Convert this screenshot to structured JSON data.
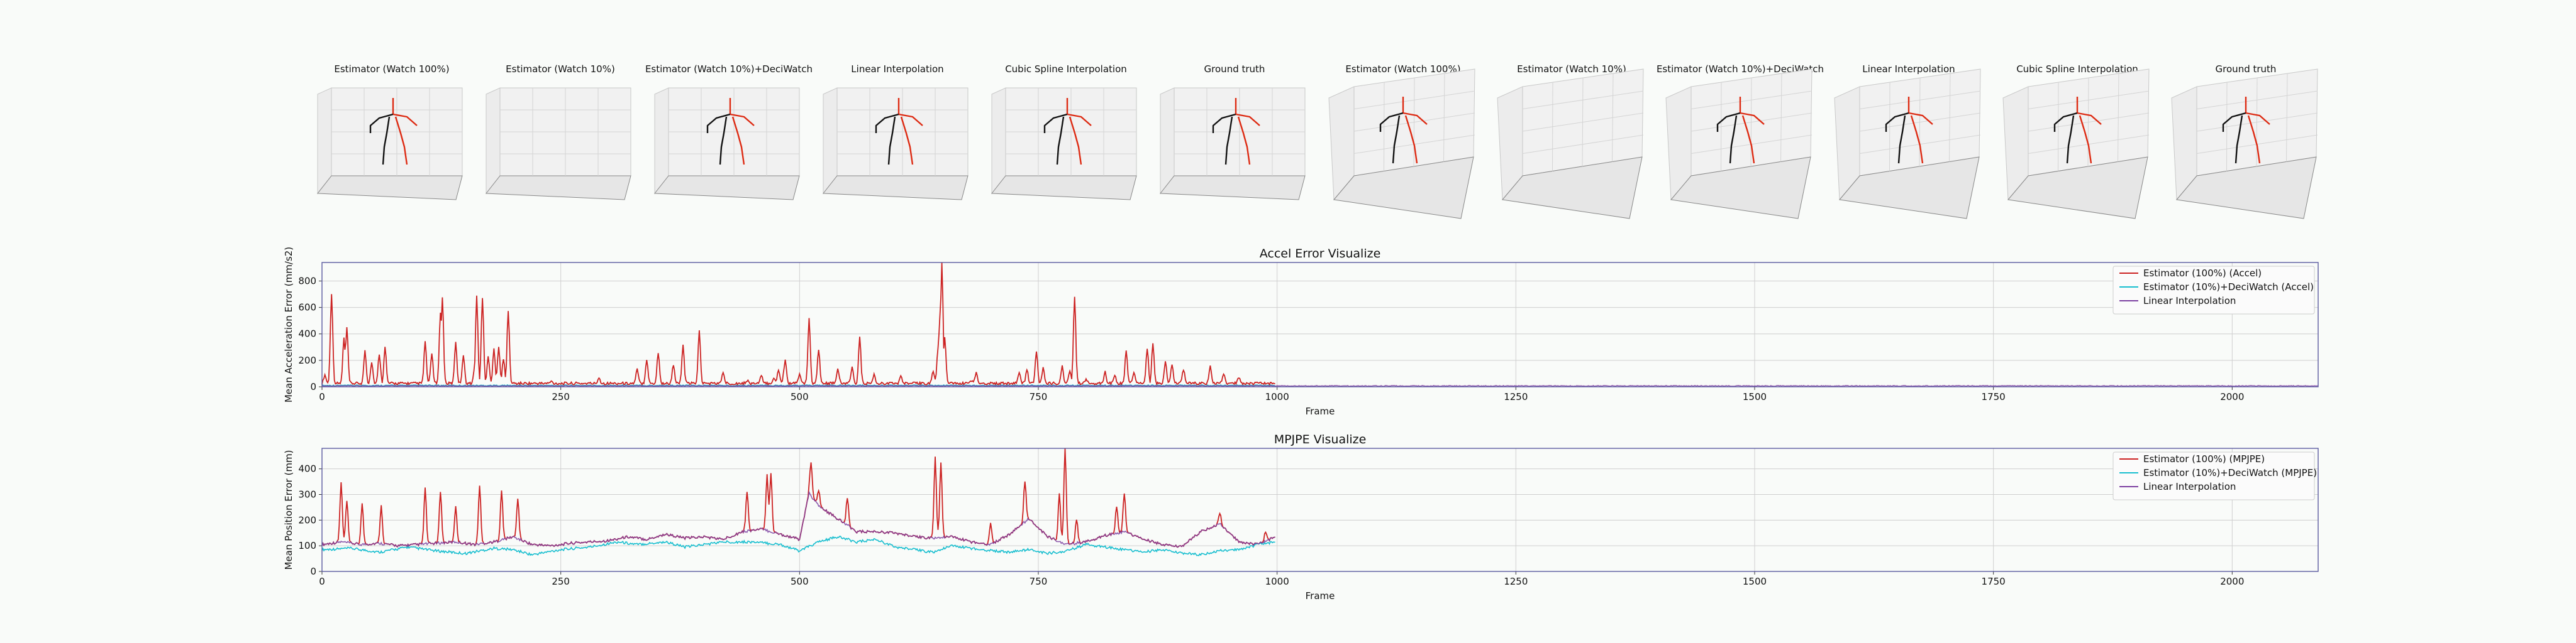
{
  "panels_row": {
    "titles": [
      "Estimator (Watch 100%)",
      "Estimator (Watch 10%)",
      "Estimator (Watch 10%)+DeciWatch",
      "Linear Interpolation",
      "Cubic Spline Interpolation",
      "Ground truth",
      "Estimator (Watch 100%)",
      "Estimator (Watch 10%)",
      "Estimator (Watch 10%)+DeciWatch",
      "Linear Interpolation",
      "Cubic Spline Interpolation",
      "Ground truth"
    ],
    "skeleton_visible": [
      true,
      false,
      true,
      true,
      true,
      true,
      true,
      false,
      true,
      true,
      true,
      true
    ]
  },
  "colors": {
    "accel_estimator": "#cc2222",
    "deciwatch": "#17becf",
    "linear": "#7b3fa0",
    "skeleton_red": "#dd2a12",
    "skeleton_black": "#111111",
    "axes_frame": "#5a5aa0"
  },
  "chart_data": [
    {
      "type": "line",
      "title": "Accel Error Visualize",
      "xlabel": "Frame",
      "ylabel": "Mean Acceleration Error (mm/s2)",
      "xlim": [
        0,
        2090
      ],
      "ylim": [
        0,
        940
      ],
      "xticks": [
        0,
        250,
        500,
        750,
        1000,
        1250,
        1500,
        1750,
        2000
      ],
      "yticks": [
        0,
        200,
        400,
        600,
        800
      ],
      "legend_position": "top-right",
      "series": [
        {
          "name": "Estimator (100%) (Accel)",
          "color": "#cc2222",
          "baseline": 15,
          "spikes": [
            [
              3,
              80
            ],
            [
              10,
              700
            ],
            [
              23,
              360
            ],
            [
              26,
              440
            ],
            [
              45,
              260
            ],
            [
              52,
              180
            ],
            [
              60,
              240
            ],
            [
              66,
              290
            ],
            [
              108,
              330
            ],
            [
              115,
              240
            ],
            [
              124,
              560
            ],
            [
              126,
              670
            ],
            [
              140,
              330
            ],
            [
              148,
              230
            ],
            [
              160,
              140
            ],
            [
              162,
              670
            ],
            [
              168,
              660
            ],
            [
              174,
              220
            ],
            [
              180,
              270
            ],
            [
              185,
              300
            ],
            [
              190,
              200
            ],
            [
              195,
              560
            ],
            [
              240,
              30
            ],
            [
              290,
              60
            ],
            [
              330,
              120
            ],
            [
              340,
              200
            ],
            [
              352,
              250
            ],
            [
              368,
              160
            ],
            [
              378,
              300
            ],
            [
              395,
              410
            ],
            [
              420,
              100
            ],
            [
              445,
              40
            ],
            [
              460,
              70
            ],
            [
              473,
              60
            ],
            [
              478,
              120
            ],
            [
              484,
              120
            ],
            [
              485,
              200
            ],
            [
              500,
              90
            ],
            [
              510,
              500
            ],
            [
              520,
              270
            ],
            [
              540,
              130
            ],
            [
              555,
              140
            ],
            [
              563,
              360
            ],
            [
              578,
              80
            ],
            [
              606,
              70
            ],
            [
              640,
              110
            ],
            [
              645,
              280
            ],
            [
              647,
              540
            ],
            [
              649,
              930
            ],
            [
              652,
              370
            ],
            [
              680,
              40
            ],
            [
              685,
              100
            ],
            [
              730,
              100
            ],
            [
              738,
              120
            ],
            [
              748,
              260
            ],
            [
              755,
              130
            ],
            [
              775,
              150
            ],
            [
              783,
              110
            ],
            [
              788,
              680
            ],
            [
              800,
              40
            ],
            [
              820,
              100
            ],
            [
              830,
              80
            ],
            [
              842,
              260
            ],
            [
              850,
              100
            ],
            [
              864,
              280
            ],
            [
              870,
              310
            ],
            [
              883,
              180
            ],
            [
              890,
              160
            ],
            [
              902,
              120
            ],
            [
              930,
              150
            ],
            [
              944,
              90
            ],
            [
              960,
              60
            ]
          ],
          "max_frame": 998
        },
        {
          "name": "Estimator (10%)+DeciWatch (Accel)",
          "color": "#17becf",
          "baseline": 6,
          "max_frame": 998
        },
        {
          "name": "Linear Interpolation",
          "color": "#7b3fa0",
          "baseline": 4,
          "max_frame": 2090
        }
      ]
    },
    {
      "type": "line",
      "title": "MPJPE Visualize",
      "xlabel": "Frame",
      "ylabel": "Mean Position Error (mm)",
      "xlim": [
        0,
        2090
      ],
      "ylim": [
        0,
        480
      ],
      "xticks": [
        0,
        250,
        500,
        750,
        1000,
        1250,
        1500,
        1750,
        2000
      ],
      "yticks": [
        0,
        100,
        200,
        300,
        400
      ],
      "legend_position": "top-right",
      "series": [
        {
          "name": "Estimator (100%) (MPJPE)",
          "color": "#cc2222",
          "keypoints": [
            [
              0,
              100
            ],
            [
              20,
              110
            ],
            [
              40,
              100
            ],
            [
              60,
              105
            ],
            [
              80,
              95
            ],
            [
              100,
              100
            ],
            [
              120,
              105
            ],
            [
              140,
              110
            ],
            [
              160,
              100
            ],
            [
              180,
              110
            ],
            [
              200,
              130
            ],
            [
              220,
              100
            ],
            [
              240,
              95
            ],
            [
              260,
              105
            ],
            [
              280,
              110
            ],
            [
              300,
              115
            ],
            [
              320,
              130
            ],
            [
              340,
              120
            ],
            [
              360,
              140
            ],
            [
              380,
              125
            ],
            [
              400,
              130
            ],
            [
              420,
              120
            ],
            [
              440,
              150
            ],
            [
              460,
              160
            ],
            [
              480,
              140
            ],
            [
              500,
              120
            ],
            [
              510,
              300
            ],
            [
              520,
              250
            ],
            [
              540,
              200
            ],
            [
              560,
              150
            ],
            [
              580,
              150
            ],
            [
              600,
              145
            ],
            [
              620,
              130
            ],
            [
              640,
              125
            ],
            [
              660,
              130
            ],
            [
              680,
              110
            ],
            [
              700,
              100
            ],
            [
              720,
              140
            ],
            [
              740,
              200
            ],
            [
              760,
              130
            ],
            [
              780,
              100
            ],
            [
              800,
              110
            ],
            [
              820,
              135
            ],
            [
              840,
              150
            ],
            [
              860,
              120
            ],
            [
              880,
              100
            ],
            [
              900,
              90
            ],
            [
              920,
              150
            ],
            [
              940,
              180
            ],
            [
              960,
              110
            ],
            [
              980,
              100
            ],
            [
              998,
              130
            ]
          ],
          "spikes": [
            [
              20,
              340
            ],
            [
              26,
              270
            ],
            [
              42,
              260
            ],
            [
              62,
              250
            ],
            [
              108,
              320
            ],
            [
              124,
              310
            ],
            [
              140,
              250
            ],
            [
              165,
              330
            ],
            [
              188,
              310
            ],
            [
              205,
              280
            ],
            [
              445,
              310
            ],
            [
              466,
              370
            ],
            [
              470,
              380
            ],
            [
              512,
              420
            ],
            [
              520,
              310
            ],
            [
              550,
              280
            ],
            [
              642,
              440
            ],
            [
              648,
              420
            ],
            [
              700,
              180
            ],
            [
              736,
              350
            ],
            [
              772,
              300
            ],
            [
              778,
              480
            ],
            [
              790,
              200
            ],
            [
              832,
              250
            ],
            [
              840,
              300
            ],
            [
              940,
              220
            ],
            [
              988,
              150
            ]
          ],
          "max_frame": 998
        },
        {
          "name": "Estimator (10%)+DeciWatch (MPJPE)",
          "color": "#17becf",
          "keypoints": [
            [
              0,
              80
            ],
            [
              30,
              85
            ],
            [
              60,
              70
            ],
            [
              90,
              90
            ],
            [
              120,
              75
            ],
            [
              150,
              65
            ],
            [
              180,
              85
            ],
            [
              200,
              80
            ],
            [
              220,
              60
            ],
            [
              250,
              80
            ],
            [
              280,
              90
            ],
            [
              310,
              110
            ],
            [
              330,
              100
            ],
            [
              360,
              110
            ],
            [
              380,
              90
            ],
            [
              400,
              100
            ],
            [
              420,
              110
            ],
            [
              450,
              110
            ],
            [
              480,
              100
            ],
            [
              500,
              75
            ],
            [
              520,
              110
            ],
            [
              540,
              130
            ],
            [
              560,
              110
            ],
            [
              580,
              120
            ],
            [
              600,
              90
            ],
            [
              620,
              80
            ],
            [
              640,
              70
            ],
            [
              660,
              95
            ],
            [
              690,
              80
            ],
            [
              720,
              70
            ],
            [
              740,
              80
            ],
            [
              760,
              65
            ],
            [
              780,
              75
            ],
            [
              800,
              100
            ],
            [
              820,
              90
            ],
            [
              840,
              80
            ],
            [
              860,
              70
            ],
            [
              880,
              80
            ],
            [
              900,
              65
            ],
            [
              920,
              60
            ],
            [
              940,
              75
            ],
            [
              960,
              80
            ],
            [
              980,
              100
            ],
            [
              998,
              110
            ]
          ],
          "max_frame": 998
        },
        {
          "name": "Linear Interpolation",
          "color": "#7b3fa0",
          "keypoints": [
            [
              0,
              100
            ],
            [
              20,
              110
            ],
            [
              40,
              100
            ],
            [
              60,
              105
            ],
            [
              80,
              95
            ],
            [
              100,
              100
            ],
            [
              120,
              105
            ],
            [
              140,
              110
            ],
            [
              160,
              100
            ],
            [
              180,
              110
            ],
            [
              200,
              130
            ],
            [
              220,
              100
            ],
            [
              240,
              95
            ],
            [
              260,
              105
            ],
            [
              280,
              110
            ],
            [
              300,
              115
            ],
            [
              320,
              130
            ],
            [
              340,
              120
            ],
            [
              360,
              140
            ],
            [
              380,
              125
            ],
            [
              400,
              130
            ],
            [
              420,
              120
            ],
            [
              440,
              150
            ],
            [
              460,
              160
            ],
            [
              480,
              140
            ],
            [
              500,
              120
            ],
            [
              510,
              300
            ],
            [
              520,
              250
            ],
            [
              540,
              200
            ],
            [
              560,
              150
            ],
            [
              580,
              150
            ],
            [
              600,
              145
            ],
            [
              620,
              130
            ],
            [
              640,
              125
            ],
            [
              660,
              130
            ],
            [
              680,
              110
            ],
            [
              700,
              100
            ],
            [
              720,
              140
            ],
            [
              740,
              200
            ],
            [
              760,
              130
            ],
            [
              780,
              100
            ],
            [
              800,
              110
            ],
            [
              820,
              135
            ],
            [
              840,
              150
            ],
            [
              860,
              120
            ],
            [
              880,
              100
            ],
            [
              900,
              90
            ],
            [
              920,
              150
            ],
            [
              940,
              180
            ],
            [
              960,
              110
            ],
            [
              980,
              100
            ],
            [
              998,
              130
            ]
          ],
          "max_frame": 998
        }
      ]
    }
  ]
}
